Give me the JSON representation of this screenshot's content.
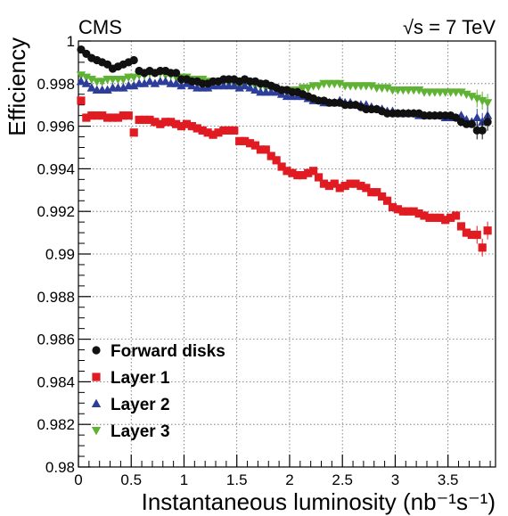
{
  "chart_data": {
    "type": "scatter",
    "header_left": "CMS",
    "header_right": "√s = 7 TeV",
    "xlabel": "Instantaneous luminosity (nb⁻¹s⁻¹)",
    "ylabel": "Efficiency",
    "xlim": [
      0,
      3.95
    ],
    "ylim": [
      0.98,
      1.0
    ],
    "x_ticks": [
      "0",
      "0.5",
      "1",
      "1.5",
      "2",
      "2.5",
      "3",
      "3.5"
    ],
    "x_tick_values": [
      0,
      0.5,
      1,
      1.5,
      2,
      2.5,
      3,
      3.5
    ],
    "y_ticks": [
      "0.98",
      "0.982",
      "0.984",
      "0.986",
      "0.988",
      "0.99",
      "0.992",
      "0.994",
      "0.996",
      "0.998",
      "1"
    ],
    "y_tick_values": [
      0.98,
      0.982,
      0.984,
      0.986,
      0.988,
      0.99,
      0.992,
      0.994,
      0.996,
      0.998,
      1.0
    ],
    "grid": true,
    "legend_position": "bottom-left",
    "x": [
      0.025,
      0.075,
      0.125,
      0.175,
      0.225,
      0.275,
      0.325,
      0.375,
      0.425,
      0.475,
      0.525,
      0.575,
      0.625,
      0.675,
      0.725,
      0.775,
      0.825,
      0.875,
      0.925,
      0.975,
      1.025,
      1.075,
      1.125,
      1.175,
      1.225,
      1.275,
      1.325,
      1.375,
      1.425,
      1.475,
      1.525,
      1.575,
      1.625,
      1.675,
      1.725,
      1.775,
      1.825,
      1.875,
      1.925,
      1.975,
      2.025,
      2.075,
      2.125,
      2.175,
      2.225,
      2.275,
      2.325,
      2.375,
      2.425,
      2.475,
      2.525,
      2.575,
      2.625,
      2.675,
      2.725,
      2.775,
      2.825,
      2.875,
      2.925,
      2.975,
      3.025,
      3.075,
      3.125,
      3.175,
      3.225,
      3.275,
      3.325,
      3.375,
      3.425,
      3.475,
      3.525,
      3.575,
      3.625,
      3.675,
      3.725,
      3.775,
      3.825,
      3.875
    ],
    "series": [
      {
        "name": "Forward disks",
        "color": "#111111",
        "marker": "circle",
        "values": [
          0.9996,
          0.9994,
          0.9992,
          0.9991,
          0.999,
          0.9989,
          0.9987,
          0.9988,
          0.9989,
          0.999,
          0.9991,
          0.9986,
          0.9985,
          0.9986,
          0.9985,
          0.9986,
          0.9986,
          0.9985,
          0.9985,
          0.9982,
          0.9982,
          0.9981,
          0.9981,
          0.998,
          0.998,
          0.9981,
          0.9981,
          0.9982,
          0.9982,
          0.9982,
          0.9981,
          0.9982,
          0.9981,
          0.9981,
          0.998,
          0.998,
          0.9979,
          0.9978,
          0.9977,
          0.9977,
          0.9976,
          0.9976,
          0.9975,
          0.9974,
          0.9973,
          0.9972,
          0.9972,
          0.9971,
          0.9971,
          0.9971,
          0.997,
          0.997,
          0.997,
          0.9969,
          0.9968,
          0.9968,
          0.9968,
          0.9967,
          0.9966,
          0.9966,
          0.9966,
          0.9966,
          0.9966,
          0.9966,
          0.9966,
          0.9965,
          0.9965,
          0.9965,
          0.9965,
          0.9965,
          0.9965,
          0.9964,
          0.9962,
          0.9961,
          0.9961,
          0.9958,
          0.9958,
          0.9962
        ]
      },
      {
        "name": "Layer 1",
        "color": "#e11b22",
        "marker": "square",
        "values": [
          0.9972,
          0.9964,
          0.9965,
          0.9965,
          0.9965,
          0.9964,
          0.9964,
          0.9964,
          0.9965,
          0.9965,
          0.9957,
          0.9963,
          0.9963,
          0.9963,
          0.9962,
          0.9961,
          0.9962,
          0.9962,
          0.9961,
          0.996,
          0.9961,
          0.996,
          0.9959,
          0.9958,
          0.9957,
          0.9956,
          0.9957,
          0.9958,
          0.9958,
          0.9958,
          0.9953,
          0.9953,
          0.9952,
          0.9951,
          0.9949,
          0.9949,
          0.9946,
          0.9944,
          0.9941,
          0.9939,
          0.9938,
          0.9937,
          0.9937,
          0.9938,
          0.9939,
          0.9936,
          0.9933,
          0.9932,
          0.9933,
          0.9931,
          0.9932,
          0.9933,
          0.9933,
          0.9932,
          0.9931,
          0.9929,
          0.9929,
          0.9927,
          0.9925,
          0.9922,
          0.9921,
          0.992,
          0.992,
          0.992,
          0.9919,
          0.9918,
          0.9917,
          0.9917,
          0.9917,
          0.9916,
          0.9917,
          0.9918,
          0.9913,
          0.991,
          0.9909,
          0.9909,
          0.9903,
          0.9911
        ]
      },
      {
        "name": "Layer 2",
        "color": "#2c3e9a",
        "marker": "triangle-up",
        "values": [
          0.9981,
          0.998,
          0.9978,
          0.9977,
          0.9977,
          0.9977,
          0.9978,
          0.9978,
          0.9978,
          0.9979,
          0.9979,
          0.998,
          0.998,
          0.9981,
          0.998,
          0.9981,
          0.9981,
          0.998,
          0.998,
          0.9979,
          0.998,
          0.9979,
          0.9978,
          0.9978,
          0.9978,
          0.9979,
          0.9979,
          0.9979,
          0.9979,
          0.9979,
          0.9978,
          0.9979,
          0.9978,
          0.9977,
          0.9976,
          0.9976,
          0.9976,
          0.9976,
          0.9975,
          0.9974,
          0.9974,
          0.9974,
          0.9974,
          0.9973,
          0.9972,
          0.9972,
          0.9971,
          0.9971,
          0.9971,
          0.9972,
          0.9971,
          0.9971,
          0.997,
          0.997,
          0.997,
          0.9969,
          0.9968,
          0.9968,
          0.9967,
          0.9967,
          0.9966,
          0.9966,
          0.9966,
          0.9966,
          0.9965,
          0.9965,
          0.9965,
          0.9965,
          0.9965,
          0.9964,
          0.9964,
          0.9964,
          0.9965,
          0.9963,
          0.9962,
          0.9964,
          0.9962,
          0.9965
        ]
      },
      {
        "name": "Layer 3",
        "color": "#5fb233",
        "marker": "triangle-down",
        "values": [
          0.9984,
          0.9983,
          0.9982,
          0.9981,
          0.9981,
          0.9982,
          0.9982,
          0.9982,
          0.9982,
          0.9983,
          0.9983,
          0.9984,
          0.9984,
          0.9985,
          0.9985,
          0.9985,
          0.9984,
          0.9984,
          0.9983,
          0.9983,
          0.9983,
          0.9982,
          0.9982,
          0.9982,
          0.9981,
          0.9981,
          0.9981,
          0.9981,
          0.998,
          0.998,
          0.9979,
          0.998,
          0.998,
          0.9979,
          0.9979,
          0.9978,
          0.9978,
          0.9977,
          0.9977,
          0.9977,
          0.9977,
          0.9977,
          0.9978,
          0.9978,
          0.9979,
          0.9979,
          0.998,
          0.998,
          0.998,
          0.998,
          0.9979,
          0.9979,
          0.9979,
          0.9979,
          0.9979,
          0.9979,
          0.9978,
          0.9978,
          0.9978,
          0.9977,
          0.9977,
          0.9977,
          0.9977,
          0.9977,
          0.9977,
          0.9976,
          0.9976,
          0.9976,
          0.9976,
          0.9976,
          0.9976,
          0.9976,
          0.9976,
          0.9975,
          0.9974,
          0.9973,
          0.9972,
          0.9971
        ]
      }
    ]
  }
}
